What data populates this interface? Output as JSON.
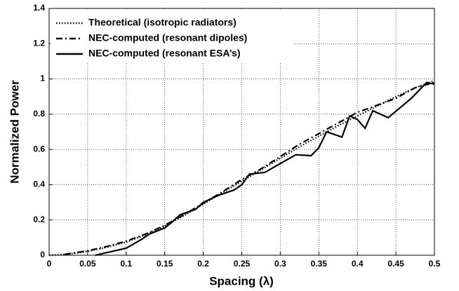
{
  "chart_data": {
    "type": "line",
    "xlabel": "Spacing (λ)",
    "ylabel": "Normalized Power",
    "xlim": [
      0,
      0.5
    ],
    "ylim": [
      0,
      1.4
    ],
    "xticks": [
      0,
      0.05,
      0.1,
      0.15,
      0.2,
      0.25,
      0.3,
      0.35,
      0.4,
      0.45,
      0.5
    ],
    "yticks": [
      0,
      0.2,
      0.4,
      0.6,
      0.8,
      1,
      1.2,
      1.4
    ],
    "grid": true,
    "legend": "upper left",
    "series": [
      {
        "name": "Theoretical (isotropic radiators)",
        "color": "#000000",
        "style": "dotted",
        "x": [
          0,
          0.025,
          0.05,
          0.075,
          0.1,
          0.125,
          0.15,
          0.175,
          0.2,
          0.225,
          0.25,
          0.275,
          0.3,
          0.325,
          0.35,
          0.375,
          0.4,
          0.425,
          0.45,
          0.475,
          0.5
        ],
        "values": [
          0,
          0.006,
          0.022,
          0.045,
          0.075,
          0.115,
          0.165,
          0.225,
          0.29,
          0.355,
          0.42,
          0.485,
          0.55,
          0.615,
          0.675,
          0.735,
          0.79,
          0.845,
          0.9,
          0.95,
          0.99
        ]
      },
      {
        "name": "NEC-computed (resonant dipoles)",
        "color": "#000000",
        "style": "dashed",
        "x": [
          0.02,
          0.05,
          0.075,
          0.1,
          0.125,
          0.15,
          0.175,
          0.2,
          0.225,
          0.25,
          0.275,
          0.3,
          0.325,
          0.35,
          0.375,
          0.4,
          0.425,
          0.45,
          0.475,
          0.5
        ],
        "values": [
          0.005,
          0.025,
          0.05,
          0.08,
          0.12,
          0.17,
          0.23,
          0.295,
          0.36,
          0.43,
          0.49,
          0.56,
          0.63,
          0.69,
          0.75,
          0.81,
          0.85,
          0.89,
          0.95,
          0.98
        ]
      },
      {
        "name": "NEC-computed (resonant ESA’s)",
        "color": "#000000",
        "style": "solid",
        "x": [
          0.06,
          0.07,
          0.1,
          0.12,
          0.13,
          0.15,
          0.16,
          0.17,
          0.19,
          0.2,
          0.22,
          0.24,
          0.25,
          0.26,
          0.28,
          0.3,
          0.32,
          0.34,
          0.35,
          0.36,
          0.38,
          0.39,
          0.4,
          0.41,
          0.42,
          0.44,
          0.47,
          0.49,
          0.5
        ],
        "values": [
          0,
          0.01,
          0.04,
          0.09,
          0.12,
          0.155,
          0.19,
          0.23,
          0.26,
          0.3,
          0.34,
          0.37,
          0.4,
          0.46,
          0.47,
          0.52,
          0.57,
          0.565,
          0.61,
          0.7,
          0.67,
          0.79,
          0.77,
          0.72,
          0.82,
          0.78,
          0.89,
          0.98,
          0.97
        ]
      }
    ]
  }
}
